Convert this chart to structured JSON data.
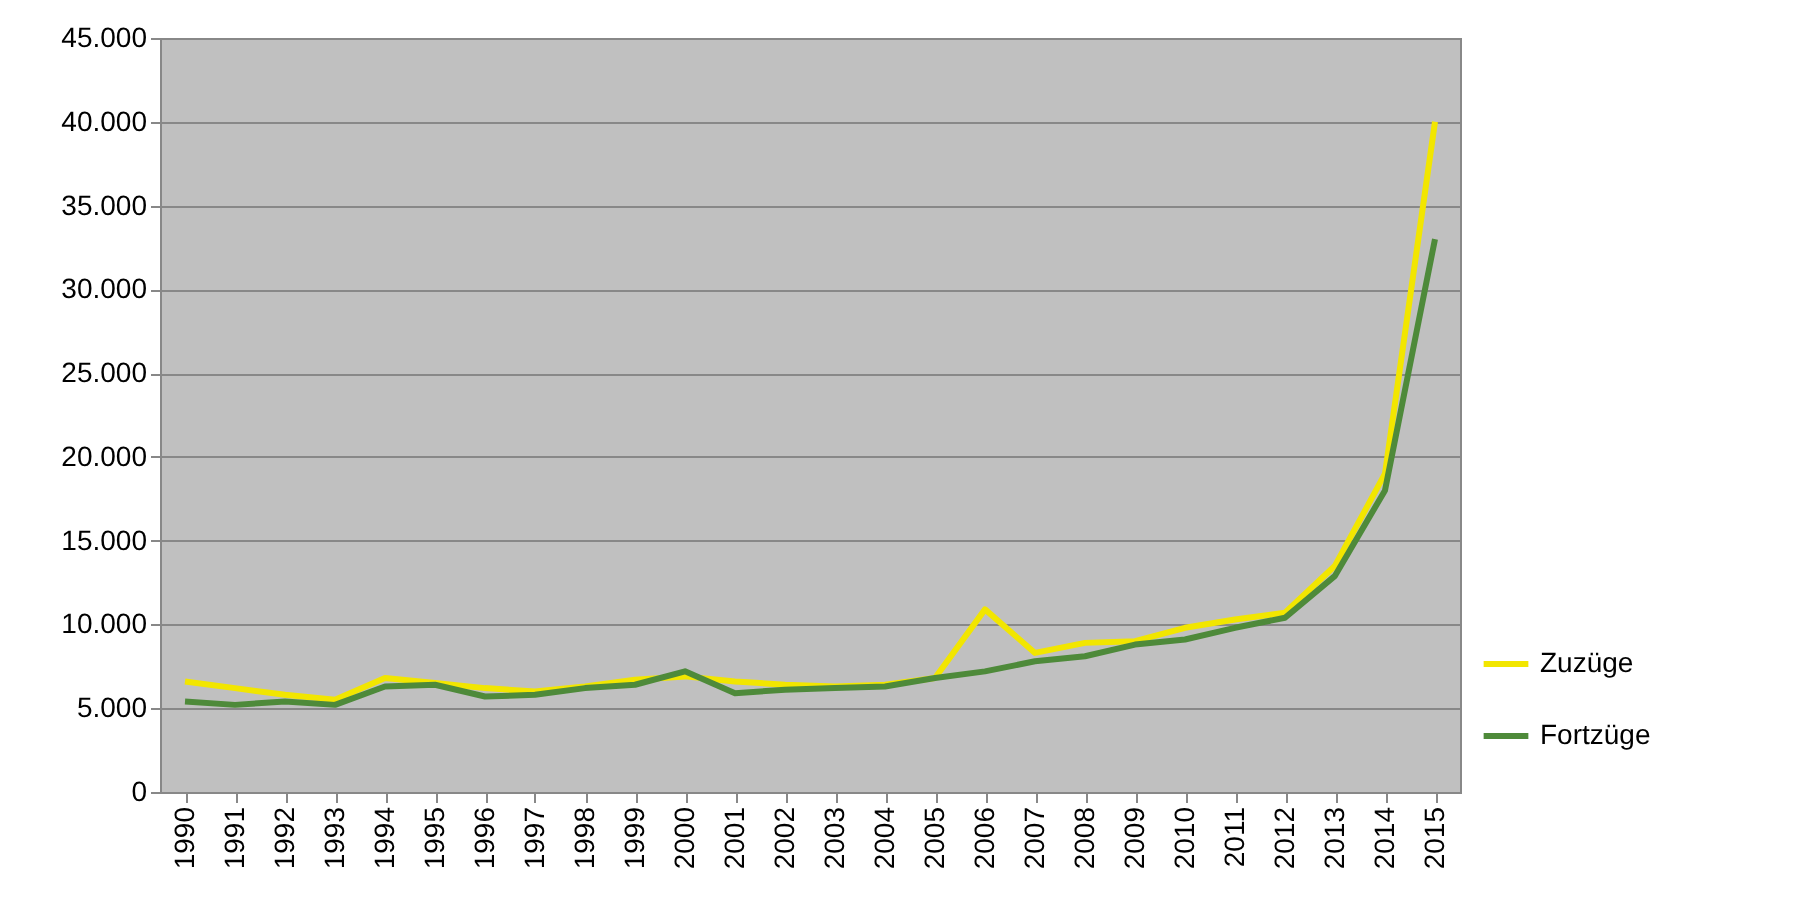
{
  "chart_data": {
    "type": "line",
    "categories": [
      "1990",
      "1991",
      "1992",
      "1993",
      "1994",
      "1995",
      "1996",
      "1997",
      "1998",
      "1999",
      "2000",
      "2001",
      "2002",
      "2003",
      "2004",
      "2005",
      "2006",
      "2007",
      "2008",
      "2009",
      "2010",
      "2011",
      "2012",
      "2013",
      "2014",
      "2015"
    ],
    "series": [
      {
        "name": "Zuzüge",
        "color": "#f2e600",
        "values": [
          6600,
          6200,
          5800,
          5500,
          6800,
          6500,
          6200,
          6000,
          6300,
          6700,
          6900,
          6600,
          6400,
          6300,
          6400,
          6800,
          10900,
          8300,
          8900,
          9000,
          9800,
          10300,
          10700,
          13500,
          19000,
          40000
        ]
      },
      {
        "name": "Fortzüge",
        "color": "#4e8a3a",
        "values": [
          5400,
          5200,
          5400,
          5200,
          6300,
          6400,
          5700,
          5800,
          6200,
          6400,
          7200,
          5900,
          6100,
          6200,
          6300,
          6800,
          7200,
          7800,
          8100,
          8800,
          9100,
          9800,
          10400,
          12900,
          18000,
          33000
        ]
      }
    ],
    "ylim": [
      0,
      45000
    ],
    "yticks": [
      {
        "value": 0,
        "label": "0"
      },
      {
        "value": 5000,
        "label": "5.000"
      },
      {
        "value": 10000,
        "label": "10.000"
      },
      {
        "value": 15000,
        "label": "15.000"
      },
      {
        "value": 20000,
        "label": "20.000"
      },
      {
        "value": 25000,
        "label": "25.000"
      },
      {
        "value": 30000,
        "label": "30.000"
      },
      {
        "value": 35000,
        "label": "35.000"
      },
      {
        "value": 40000,
        "label": "40.000"
      },
      {
        "value": 45000,
        "label": "45.000"
      }
    ],
    "grid": "y",
    "legend": "right",
    "marker": "none",
    "line_style": "solid"
  }
}
